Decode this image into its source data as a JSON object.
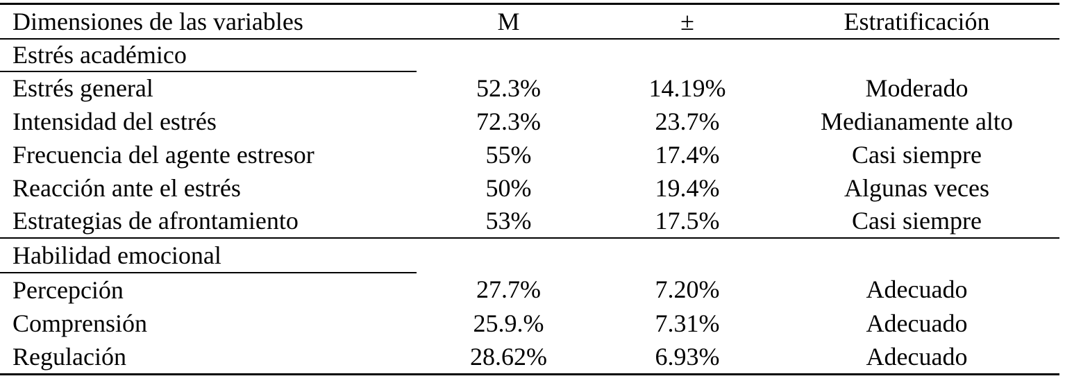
{
  "page_bg": "#ffffff",
  "text_color": "#000000",
  "rule_color": "#000000",
  "table": {
    "columns": [
      "Dimensiones de las variables",
      "M",
      "±",
      "Estratificación"
    ],
    "sections": [
      {
        "title": "Estrés académico",
        "rows": [
          {
            "label": "Estrés general",
            "m": "52.3%",
            "sd": "14.19%",
            "strat": "Moderado"
          },
          {
            "label": "Intensidad del estrés",
            "m": "72.3%",
            "sd": "23.7%",
            "strat": "Medianamente alto"
          },
          {
            "label": "Frecuencia del agente estresor",
            "m": "55%",
            "sd": "17.4%",
            "strat": "Casi siempre"
          },
          {
            "label": "Reacción ante el estrés",
            "m": "50%",
            "sd": "19.4%",
            "strat": "Algunas veces"
          },
          {
            "label": "Estrategias de afrontamiento",
            "m": "53%",
            "sd": "17.5%",
            "strat": "Casi siempre"
          }
        ]
      },
      {
        "title": "Habilidad emocional",
        "rows": [
          {
            "label": "Percepción",
            "m": "27.7%",
            "sd": "7.20%",
            "strat": "Adecuado"
          },
          {
            "label": "Comprensión",
            "m": "25.9.%",
            "sd": "7.31%",
            "strat": "Adecuado"
          },
          {
            "label": "Regulación",
            "m": "28.62%",
            "sd": "6.93%",
            "strat": "Adecuado"
          }
        ]
      }
    ]
  }
}
